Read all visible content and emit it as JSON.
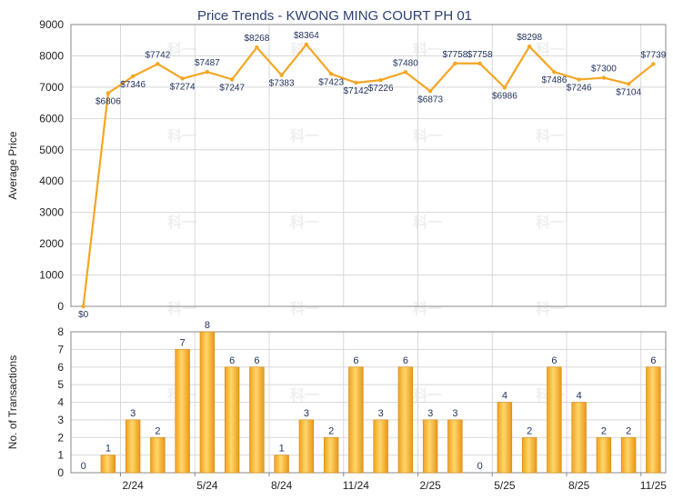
{
  "chart_data": [
    {
      "type": "line",
      "title": "Price Trends - KWONG MING COURT PH 01",
      "ylabel": "Average Price",
      "ylim": [
        0,
        9000
      ],
      "yticks": [
        0,
        1000,
        2000,
        3000,
        4000,
        5000,
        6000,
        7000,
        8000,
        9000
      ],
      "grid": true,
      "color": "#f5a623",
      "values": [
        0,
        6806,
        7346,
        7742,
        7274,
        7487,
        7247,
        8268,
        7383,
        8364,
        7423,
        7142,
        7226,
        7480,
        6873,
        7758,
        7758,
        6986,
        8298,
        7486,
        7246,
        7300,
        7104,
        7739
      ],
      "labels": [
        "$0",
        "$6806",
        "$7346",
        "$7742",
        "$7274",
        "$7487",
        "$7247",
        "$8268",
        "$7383",
        "$8364",
        "$7423",
        "$7142",
        "$7226",
        "$7480",
        "$6873",
        "$7758",
        "$7758",
        "$6986",
        "$8298",
        "$7486",
        "$7246",
        "$7300",
        "$7104",
        "$7739"
      ]
    },
    {
      "type": "bar",
      "ylabel": "No. of Transactions",
      "ylim": [
        0,
        8
      ],
      "yticks": [
        0,
        1,
        2,
        3,
        4,
        5,
        6,
        7,
        8
      ],
      "grid": true,
      "color": "#f5a623",
      "values": [
        0,
        1,
        3,
        2,
        7,
        8,
        6,
        6,
        1,
        3,
        2,
        6,
        3,
        6,
        3,
        3,
        0,
        4,
        2,
        6,
        4,
        2,
        2,
        6
      ],
      "x_tick_labels": [
        {
          "label": "2/24",
          "index": 2
        },
        {
          "label": "5/24",
          "index": 5
        },
        {
          "label": "8/24",
          "index": 8
        },
        {
          "label": "11/24",
          "index": 11
        },
        {
          "label": "2/25",
          "index": 14
        },
        {
          "label": "5/25",
          "index": 17
        },
        {
          "label": "8/25",
          "index": 20
        },
        {
          "label": "11/25",
          "index": 23
        }
      ]
    }
  ],
  "watermark": "科一"
}
